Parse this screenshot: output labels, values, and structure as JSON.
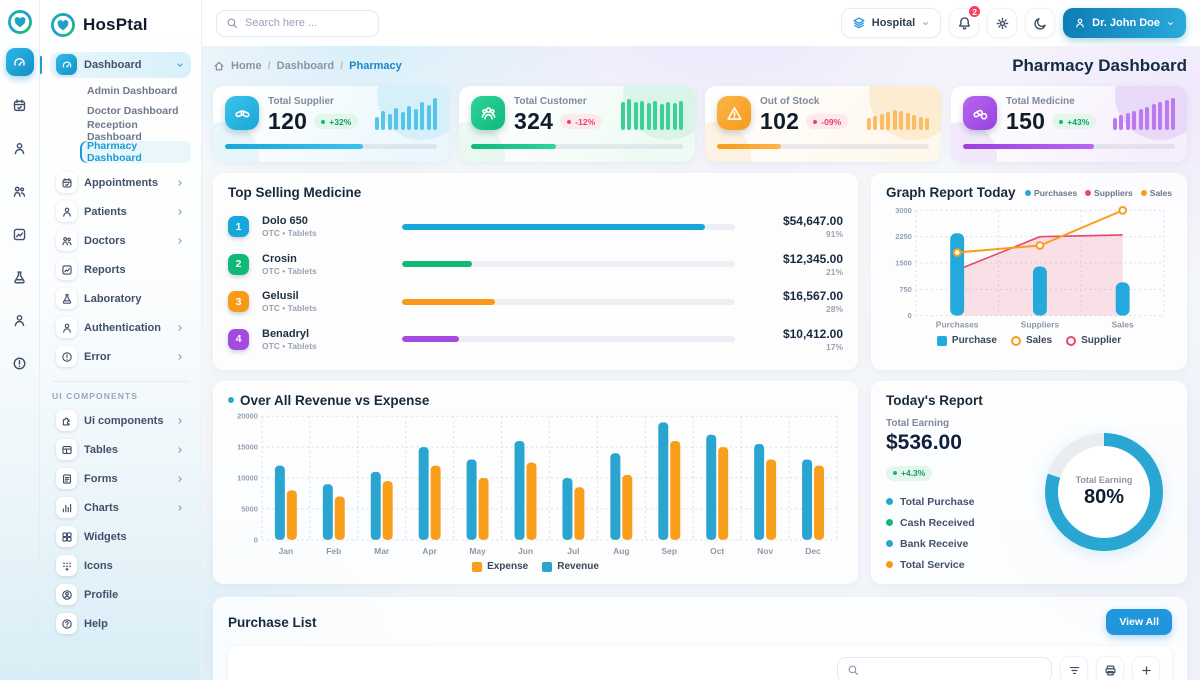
{
  "app": {
    "name": "HosPtal"
  },
  "topbar": {
    "search_placeholder": "Search here ...",
    "hospital_label": "Hospital",
    "notification_count": "2",
    "user_name": "Dr. John Doe"
  },
  "breadcrumb": {
    "items": [
      "Home",
      "Dashboard",
      "Pharmacy"
    ],
    "separator": "/",
    "page_title": "Pharmacy Dashboard"
  },
  "sidebar": {
    "rail": [
      "gauge",
      "calendar",
      "patient",
      "doctors",
      "report",
      "flask",
      "auth",
      "error"
    ],
    "main_items": [
      {
        "label": "Dashboard",
        "icon": "gauge",
        "expanded": true,
        "active": true,
        "children": [
          {
            "label": "Admin Dashboard"
          },
          {
            "label": "Doctor Dashboard"
          },
          {
            "label": "Reception Dashboard"
          },
          {
            "label": "Pharmacy Dashboard",
            "active": true
          }
        ]
      },
      {
        "label": "Appointments",
        "icon": "calendar",
        "chevron": true
      },
      {
        "label": "Patients",
        "icon": "patient",
        "chevron": true
      },
      {
        "label": "Doctors",
        "icon": "doctors",
        "chevron": true
      },
      {
        "label": "Reports",
        "icon": "report"
      },
      {
        "label": "Laboratory",
        "icon": "flask"
      },
      {
        "label": "Authentication",
        "icon": "auth",
        "chevron": true
      },
      {
        "label": "Error",
        "icon": "error",
        "chevron": true
      }
    ],
    "section_label": "UI COMPONENTS",
    "ui_items": [
      {
        "label": "Ui components",
        "icon": "puzzle",
        "chevron": true
      },
      {
        "label": "Tables",
        "icon": "table",
        "chevron": true
      },
      {
        "label": "Forms",
        "icon": "form",
        "chevron": true
      },
      {
        "label": "Charts",
        "icon": "chart",
        "chevron": true
      },
      {
        "label": "Widgets",
        "icon": "widget"
      },
      {
        "label": "Icons",
        "icon": "icons"
      },
      {
        "label": "Profile",
        "icon": "profile"
      },
      {
        "label": "Help",
        "icon": "help"
      }
    ]
  },
  "stat_cards": [
    {
      "label": "Total Supplier",
      "value": "120",
      "delta": "+32%",
      "trend": "up",
      "icon": "pills",
      "color": "#18a7d9",
      "color2": "#3cc3ec",
      "spark_color": "#55c5ea",
      "progress": 65,
      "tint": "#eaf7fc",
      "blob": "#cfeef8",
      "spark": [
        40,
        58,
        50,
        68,
        56,
        74,
        66,
        88,
        78,
        100
      ]
    },
    {
      "label": "Total Customer",
      "value": "324",
      "delta": "-12%",
      "trend": "down",
      "icon": "customers",
      "color": "#0fb97a",
      "color2": "#2ed49a",
      "spark_color": "#3ecf9a",
      "progress": 40,
      "tint": "#eefaf4",
      "blob": "#d5f3e6",
      "spark": [
        88,
        96,
        86,
        92,
        84,
        90,
        82,
        88,
        84,
        90
      ]
    },
    {
      "label": "Out of Stock",
      "value": "102",
      "delta": "-09%",
      "trend": "down",
      "icon": "warning",
      "color": "#f89a18",
      "color2": "#fbb54a",
      "spark_color": "#fbbc63",
      "progress": 30,
      "tint": "#fef7ec",
      "blob": "#fbe8c9",
      "spark": [
        38,
        44,
        50,
        56,
        62,
        58,
        52,
        46,
        42,
        38
      ]
    },
    {
      "label": "Total Medicine",
      "value": "150",
      "delta": "+43%",
      "trend": "up",
      "icon": "medicine",
      "color": "#9b3fe0",
      "color2": "#b668f0",
      "spark_color": "#bb7bef",
      "progress": 62,
      "tint": "#f5eefc",
      "blob": "#e5d3f7",
      "spark": [
        36,
        46,
        54,
        60,
        66,
        72,
        80,
        88,
        94,
        100
      ]
    }
  ],
  "top_selling": {
    "title": "Top Selling Medicine",
    "items": [
      {
        "rank": "1",
        "name": "Dolo 650",
        "meta": "OTC • Tablets",
        "amount": "$54,647.00",
        "pct": 91,
        "color": "#18a7d9"
      },
      {
        "rank": "2",
        "name": "Crosin",
        "meta": "OTC • Tablets",
        "amount": "$12,345.00",
        "pct": 21,
        "color": "#12b877"
      },
      {
        "rank": "3",
        "name": "Gelusil",
        "meta": "OTC • Tablets",
        "amount": "$16,567.00",
        "pct": 28,
        "color": "#f89a18"
      },
      {
        "rank": "4",
        "name": "Benadryl",
        "meta": "OTC • Tablets",
        "amount": "$10,412.00",
        "pct": 17,
        "color": "#a44ae0"
      }
    ]
  },
  "chart_data": [
    {
      "type": "bar+line+area",
      "title": "Graph Report Today",
      "categories": [
        "Purchases",
        "Suppliers",
        "Sales"
      ],
      "ylim": [
        0,
        3000
      ],
      "yticks": [
        0,
        750,
        1500,
        2250,
        3000
      ],
      "series": [
        {
          "name": "Purchase",
          "kind": "bar",
          "color": "#23a9db",
          "values": [
            2350,
            1400,
            950
          ]
        },
        {
          "name": "Supplier",
          "kind": "area",
          "color": "#e8486b",
          "fill": "rgba(233,72,107,0.16)",
          "values": [
            1300,
            2250,
            2300
          ]
        },
        {
          "name": "Sales",
          "kind": "line",
          "color": "#f99e1b",
          "values": [
            1800,
            2000,
            3000
          ]
        }
      ],
      "legend_top": [
        {
          "label": "Purchases",
          "color": "#23a9db"
        },
        {
          "label": "Suppliers",
          "color": "#e8486b"
        },
        {
          "label": "Sales",
          "color": "#f99e1b"
        }
      ],
      "legend_bottom": [
        {
          "label": "Purchase",
          "color": "#23a9db",
          "marker": "square"
        },
        {
          "label": "Sales",
          "color": "#f99e1b",
          "marker": "dot"
        },
        {
          "label": "Supplier",
          "color": "#e8486b",
          "marker": "dot"
        }
      ]
    },
    {
      "type": "bar",
      "title": "Over All Revenue vs Expense",
      "categories": [
        "Jan",
        "Feb",
        "Mar",
        "Apr",
        "May",
        "Jun",
        "Jul",
        "Aug",
        "Sep",
        "Oct",
        "Nov",
        "Dec"
      ],
      "ylim": [
        0,
        20000
      ],
      "yticks": [
        0,
        5000,
        10000,
        15000,
        20000
      ],
      "series": [
        {
          "name": "Revenue",
          "color": "#2aa5cf",
          "values": [
            12000,
            9000,
            11000,
            15000,
            13000,
            16000,
            10000,
            14000,
            19000,
            17000,
            15500,
            13000
          ]
        },
        {
          "name": "Expense",
          "color": "#f99e1b",
          "values": [
            8000,
            7000,
            9500,
            12000,
            10000,
            12500,
            8500,
            10500,
            16000,
            15000,
            13000,
            12000
          ]
        }
      ],
      "legend": [
        {
          "label": "Expense",
          "color": "#f99e1b"
        },
        {
          "label": "Revenue",
          "color": "#2aa5cf"
        }
      ]
    },
    {
      "type": "pie",
      "title": "Total Earning",
      "values": [
        80,
        20
      ],
      "colors": [
        "#2aa6d2",
        "#e9edf1"
      ],
      "center_label": "Total Earning",
      "center_value": "80%"
    }
  ],
  "todays_report": {
    "title": "Today's Report",
    "earning_label": "Total Earning",
    "earning_value": "$536.00",
    "delta": "+4.3%",
    "items": [
      {
        "label": "Total Purchase",
        "color": "#2aa5cf"
      },
      {
        "label": "Cash Received",
        "color": "#12b877"
      },
      {
        "label": "Bank Receive",
        "color": "#2aa5cf"
      },
      {
        "label": "Total Service",
        "color": "#f89a18"
      }
    ]
  },
  "purchase": {
    "title": "Purchase List",
    "view_all": "View All"
  }
}
